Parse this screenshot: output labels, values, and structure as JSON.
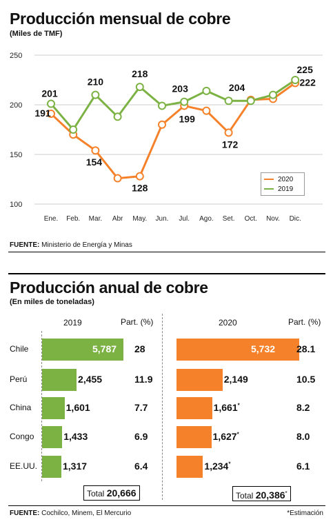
{
  "monthly": {
    "title": "Producción mensual de cobre",
    "subtitle": "(Miles de TMF)",
    "source_label": "FUENTE:",
    "source_text": " Ministerio de Energía y Minas",
    "legend": [
      "2020",
      "2019"
    ]
  },
  "annual": {
    "title": "Producción anual de cobre",
    "subtitle": "(En miles de toneladas)",
    "col_2019": "2019",
    "col_2020": "2020",
    "col_part": "Part. (%)",
    "total_label": "Total",
    "total_2019": "20,666",
    "total_2020": "20,386",
    "total_2020_mark": "*",
    "source_label": "FUENTE:",
    "source_text": " Cochilco, Minem, El Mercurio",
    "note": "*Estimación"
  },
  "colors": {
    "orange": "#f5822a",
    "green": "#7cb243",
    "grid": "#cccccc"
  },
  "chart_data": [
    {
      "type": "line",
      "title": "Producción mensual de cobre",
      "subtitle": "(Miles de TMF)",
      "x": [
        "Ene.",
        "Feb.",
        "Mar.",
        "Abr",
        "May.",
        "Jun.",
        "Jul.",
        "Ago.",
        "Set.",
        "Oct.",
        "Nov.",
        "Dic."
      ],
      "ylim": [
        100,
        250
      ],
      "yticks": [
        100,
        150,
        200,
        250
      ],
      "grid": true,
      "legend_position": "bottom-right",
      "series": [
        {
          "name": "2020",
          "color": "#f5822a",
          "values": [
            191,
            170,
            154,
            126,
            128,
            180,
            199,
            194,
            172,
            205,
            206,
            222
          ],
          "labels": [
            "191",
            null,
            "154",
            null,
            "128",
            null,
            "199",
            null,
            "172",
            null,
            null,
            "222"
          ]
        },
        {
          "name": "2019",
          "color": "#7cb243",
          "values": [
            201,
            175,
            210,
            188,
            218,
            199,
            203,
            214,
            204,
            204,
            210,
            225
          ],
          "labels": [
            "201",
            null,
            "210",
            null,
            "218",
            null,
            "203",
            null,
            "204",
            null,
            null,
            "225"
          ]
        }
      ]
    },
    {
      "type": "bar",
      "title": "Producción anual de cobre",
      "subtitle": "(En miles de toneladas)",
      "categories": [
        "Chile",
        "Perú",
        "China",
        "Congo",
        "EE.UU."
      ],
      "orientation": "horizontal",
      "series": [
        {
          "name": "2019",
          "color": "#7cb243",
          "values": [
            5787,
            2455,
            1601,
            1433,
            1317
          ],
          "value_labels": [
            "5,787",
            "2,455",
            "1,601",
            "1,433",
            "1,317"
          ],
          "part_pct": [
            "28",
            "11.9",
            "7.7",
            "6.9",
            "6.4"
          ]
        },
        {
          "name": "2020",
          "color": "#f5822a",
          "values": [
            5732,
            2149,
            1661,
            1627,
            1234
          ],
          "value_labels": [
            "5,732",
            "2,149",
            "1,661",
            "1,627",
            "1,234"
          ],
          "estimate_mark": [
            "",
            "",
            "*",
            "*",
            "*"
          ],
          "part_pct": [
            "28.1",
            "10.5",
            "8.2",
            "8.0",
            "6.1"
          ]
        }
      ]
    }
  ]
}
